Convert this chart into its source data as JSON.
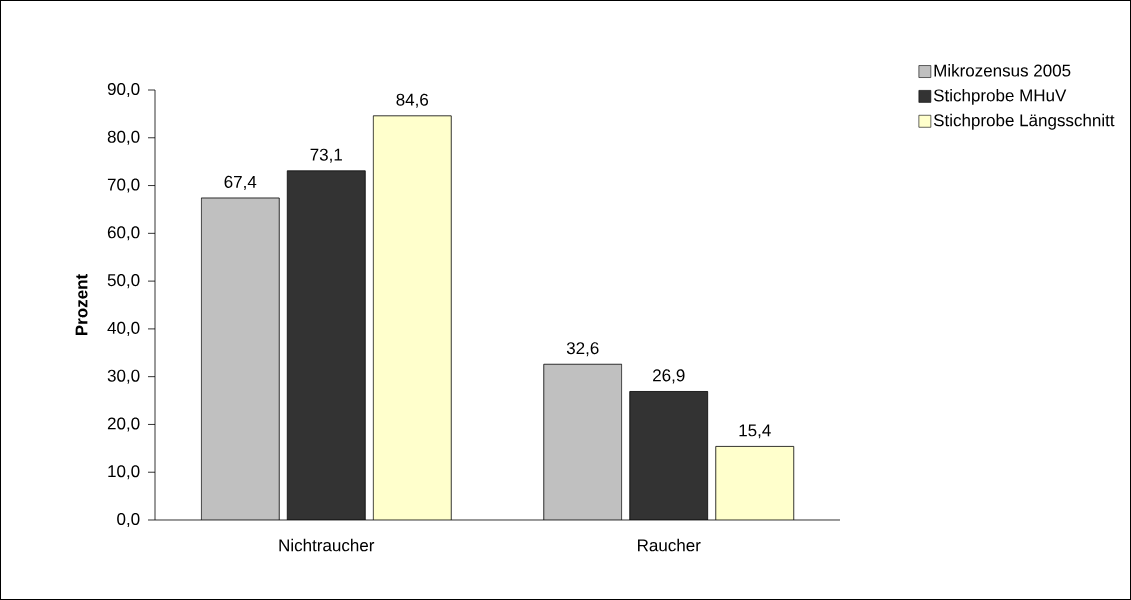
{
  "chart_data": {
    "type": "bar",
    "ylabel": "Prozent",
    "categories": [
      "Nichtraucher",
      "Raucher"
    ],
    "series": [
      {
        "name": "Mikrozensus 2005",
        "color": "#c0c0c0",
        "values": [
          67.4,
          32.6
        ],
        "value_labels": [
          "67,4",
          "32,6"
        ]
      },
      {
        "name": "Stichprobe MHuV",
        "color": "#333333",
        "values": [
          73.1,
          26.9
        ],
        "value_labels": [
          "73,1",
          "26,9"
        ]
      },
      {
        "name": "Stichprobe Längsschnitt",
        "color": "#ffffcc",
        "values": [
          84.6,
          15.4
        ],
        "value_labels": [
          "84,6",
          "15,4"
        ]
      }
    ],
    "ylim": [
      0,
      90
    ],
    "yticks": [
      {
        "value": 0,
        "label": "0,0"
      },
      {
        "value": 10,
        "label": "10,0"
      },
      {
        "value": 20,
        "label": "20,0"
      },
      {
        "value": 30,
        "label": "30,0"
      },
      {
        "value": 40,
        "label": "40,0"
      },
      {
        "value": 50,
        "label": "50,0"
      },
      {
        "value": 60,
        "label": "60,0"
      },
      {
        "value": 70,
        "label": "70,0"
      },
      {
        "value": 80,
        "label": "80,0"
      },
      {
        "value": 90,
        "label": "90,0"
      }
    ],
    "legend": "top right",
    "grid": false
  }
}
